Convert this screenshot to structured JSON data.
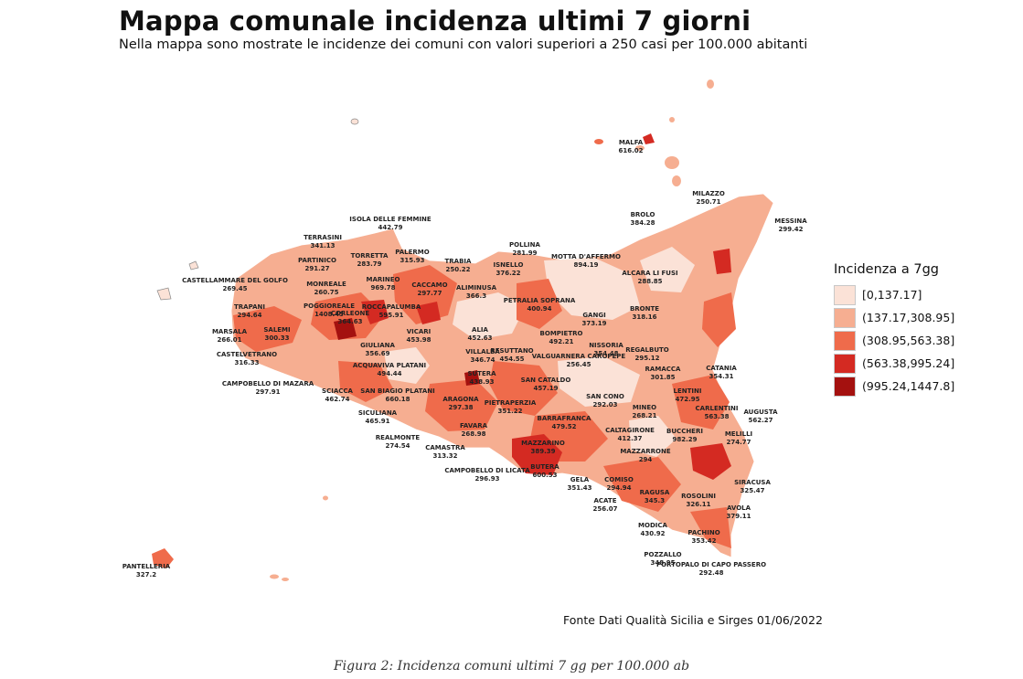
{
  "title": "Mappa comunale incidenza ultimi 7 giorni",
  "subtitle": "Nella mappa sono mostrate le incidenze dei comuni con valori superiori a 250 casi per 100.000 abitanti",
  "legend": {
    "title": "Incidenza a 7gg",
    "classes": [
      {
        "label": "[0,137.17]",
        "color": "#fbe2d7"
      },
      {
        "label": "(137.17,308.95]",
        "color": "#f6ae91"
      },
      {
        "label": "(308.95,563.38]",
        "color": "#ef6b4b"
      },
      {
        "label": "(563.38,995.24]",
        "color": "#d42a22"
      },
      {
        "label": "(995.24,1447.8]",
        "color": "#a4110f"
      }
    ]
  },
  "municipalities": [
    {
      "name": "MALFA",
      "value": "616.02"
    },
    {
      "name": "MILAZZO",
      "value": "250.71"
    },
    {
      "name": "MESSINA",
      "value": "299.42"
    },
    {
      "name": "BROLO",
      "value": "384.28"
    },
    {
      "name": "ISOLA DELLE FEMMINE",
      "value": "442.79"
    },
    {
      "name": "TERRASINI",
      "value": "341.13"
    },
    {
      "name": "PALERMO",
      "value": "315.93"
    },
    {
      "name": "TORRETTA",
      "value": "283.79"
    },
    {
      "name": "PARTINICO",
      "value": "291.27"
    },
    {
      "name": "TRABIA",
      "value": "250.22"
    },
    {
      "name": "POLLINA",
      "value": "281.99"
    },
    {
      "name": "MOTTA D'AFFERMO",
      "value": "894.19"
    },
    {
      "name": "ISNELLO",
      "value": "376.22"
    },
    {
      "name": "ALCARA LI FUSI",
      "value": "288.85"
    },
    {
      "name": "CASTELLAMMARE DEL GOLFO",
      "value": "269.45"
    },
    {
      "name": "MONREALE",
      "value": "260.75"
    },
    {
      "name": "MARINEO",
      "value": "969.78"
    },
    {
      "name": "CACCAMO",
      "value": "297.77"
    },
    {
      "name": "ALIMINUSA",
      "value": "366.3"
    },
    {
      "name": "PETRALIA SOPRANA",
      "value": "400.94"
    },
    {
      "name": "TRAPANI",
      "value": "294.64"
    },
    {
      "name": "POGGIOREALE",
      "value": "1408.45"
    },
    {
      "name": "CORLEONE",
      "value": "364.63"
    },
    {
      "name": "ROCCAPALUMBA",
      "value": "595.91"
    },
    {
      "name": "GANGI",
      "value": "373.19"
    },
    {
      "name": "BRONTE",
      "value": "318.16"
    },
    {
      "name": "MARSALA",
      "value": "266.01"
    },
    {
      "name": "SALEMI",
      "value": "300.33"
    },
    {
      "name": "VICARI",
      "value": "453.98"
    },
    {
      "name": "ALIA",
      "value": "452.63"
    },
    {
      "name": "BOMPIETRO",
      "value": "492.21"
    },
    {
      "name": "GIULIANA",
      "value": "356.69"
    },
    {
      "name": "NISSORIA",
      "value": "354.48"
    },
    {
      "name": "REGALBUTO",
      "value": "295.12"
    },
    {
      "name": "CASTELVETRANO",
      "value": "316.33"
    },
    {
      "name": "VILLALBA",
      "value": "346.74"
    },
    {
      "name": "RESUTTANO",
      "value": "454.55"
    },
    {
      "name": "VALGUARNERA CAROPEPE",
      "value": "256.45"
    },
    {
      "name": "CAMPOBELLO DI MAZARA",
      "value": "297.91"
    },
    {
      "name": "ACQUAVIVA PLATANI",
      "value": "494.44"
    },
    {
      "name": "SUTERA",
      "value": "438.93"
    },
    {
      "name": "SAN CATALDO",
      "value": "457.19"
    },
    {
      "name": "RAMACCA",
      "value": "301.85"
    },
    {
      "name": "CATANIA",
      "value": "354.31"
    },
    {
      "name": "SCIACCA",
      "value": "462.74"
    },
    {
      "name": "SAN BIAGIO PLATANI",
      "value": "660.18"
    },
    {
      "name": "ARAGONA",
      "value": "297.38"
    },
    {
      "name": "PIETRAPERZIA",
      "value": "351.22"
    },
    {
      "name": "SAN CONO",
      "value": "292.03"
    },
    {
      "name": "LENTINI",
      "value": "472.95"
    },
    {
      "name": "MINEO",
      "value": "268.21"
    },
    {
      "name": "CARLENTINI",
      "value": "563.38"
    },
    {
      "name": "AUGUSTA",
      "value": "562.27"
    },
    {
      "name": "SICULIANA",
      "value": "465.91"
    },
    {
      "name": "BARRAFRANCA",
      "value": "479.52"
    },
    {
      "name": "FAVARA",
      "value": "268.98"
    },
    {
      "name": "CALTAGIRONE",
      "value": "412.37"
    },
    {
      "name": "BUCCHERI",
      "value": "982.29"
    },
    {
      "name": "MELILLI",
      "value": "274.77"
    },
    {
      "name": "REALMONTE",
      "value": "274.54"
    },
    {
      "name": "CAMASTRA",
      "value": "313.32"
    },
    {
      "name": "MAZZARINO",
      "value": "389.39"
    },
    {
      "name": "MAZZARRONE",
      "value": "294"
    },
    {
      "name": "CAMPOBELLO DI LICATA",
      "value": "296.93"
    },
    {
      "name": "BUTERA",
      "value": "600.53"
    },
    {
      "name": "GELA",
      "value": "351.43"
    },
    {
      "name": "COMISO",
      "value": "294.94"
    },
    {
      "name": "SIRACUSA",
      "value": "325.47"
    },
    {
      "name": "RAGUSA",
      "value": "345.3"
    },
    {
      "name": "ROSOLINI",
      "value": "326.11"
    },
    {
      "name": "ACATE",
      "value": "256.07"
    },
    {
      "name": "AVOLA",
      "value": "379.11"
    },
    {
      "name": "MODICA",
      "value": "430.92"
    },
    {
      "name": "PACHINO",
      "value": "353.42"
    },
    {
      "name": "POZZALLO",
      "value": "348.95"
    },
    {
      "name": "PORTOPALO DI CAPO PASSERO",
      "value": "292.48"
    },
    {
      "name": "PANTELLERIA",
      "value": "327.2"
    }
  ],
  "source": "Fonte Dati Qualità Sicilia e Sirges 01/06/2022",
  "caption": "Figura 2: Incidenza comuni ultimi 7 gg per 100.000 ab"
}
